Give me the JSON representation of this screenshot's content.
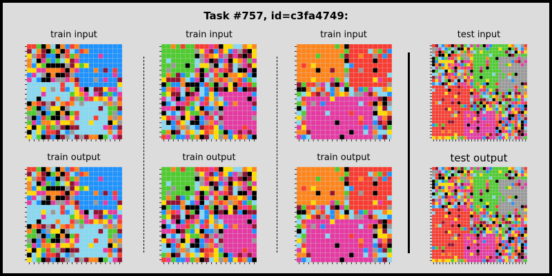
{
  "title": "Task #757, id=c3fa4749:",
  "palette": [
    "#000000",
    "#1E93FF",
    "#F93C31",
    "#4FCC30",
    "#FFDC00",
    "#999999",
    "#E53AA3",
    "#FF851B",
    "#87D8F1",
    "#921231"
  ],
  "panels": [
    {
      "label": "train input",
      "size": 20,
      "seed": 11,
      "regions": [
        [
          0.55,
          0.0,
          1.0,
          0.45,
          1
        ],
        [
          0.0,
          0.42,
          0.45,
          0.6,
          8
        ],
        [
          0.5,
          0.6,
          0.85,
          0.95,
          8
        ]
      ]
    },
    {
      "label": "train input",
      "size": 20,
      "seed": 23,
      "regions": [
        [
          0.0,
          0.0,
          0.35,
          0.3,
          3
        ],
        [
          0.65,
          0.5,
          1.0,
          0.95,
          6
        ]
      ]
    },
    {
      "label": "train input",
      "size": 20,
      "seed": 37,
      "regions": [
        [
          0.0,
          0.0,
          0.5,
          0.4,
          7
        ],
        [
          0.55,
          0.0,
          1.0,
          0.45,
          2
        ],
        [
          0.1,
          0.55,
          0.8,
          1.0,
          6
        ]
      ]
    },
    {
      "label": "test input",
      "size": 30,
      "seed": 41,
      "regions": [
        [
          0.45,
          0.0,
          0.8,
          0.45,
          3
        ],
        [
          0.0,
          0.45,
          0.4,
          0.95,
          2
        ],
        [
          0.7,
          0.15,
          1.0,
          0.5,
          5
        ],
        [
          0.35,
          0.7,
          0.65,
          1.0,
          6
        ]
      ]
    },
    {
      "label": "train output",
      "size": 20,
      "seed": 11,
      "regions": [
        [
          0.55,
          0.0,
          1.0,
          0.45,
          1
        ],
        [
          0.0,
          0.42,
          0.45,
          0.6,
          8
        ],
        [
          0.5,
          0.6,
          0.85,
          0.95,
          8
        ]
      ]
    },
    {
      "label": "train output",
      "size": 20,
      "seed": 23,
      "regions": [
        [
          0.0,
          0.0,
          0.35,
          0.3,
          3
        ],
        [
          0.65,
          0.5,
          1.0,
          0.95,
          6
        ]
      ]
    },
    {
      "label": "train output",
      "size": 20,
      "seed": 37,
      "regions": [
        [
          0.0,
          0.0,
          0.5,
          0.4,
          7
        ],
        [
          0.55,
          0.0,
          1.0,
          0.45,
          2
        ],
        [
          0.1,
          0.55,
          0.8,
          1.0,
          6
        ]
      ]
    },
    {
      "label": "test output",
      "size": 30,
      "seed": 41,
      "regions": [
        [
          0.45,
          0.0,
          0.8,
          0.45,
          3
        ],
        [
          0.0,
          0.45,
          0.4,
          0.95,
          2
        ],
        [
          0.7,
          0.15,
          1.0,
          0.5,
          5
        ],
        [
          0.35,
          0.7,
          0.65,
          1.0,
          6
        ]
      ]
    }
  ]
}
